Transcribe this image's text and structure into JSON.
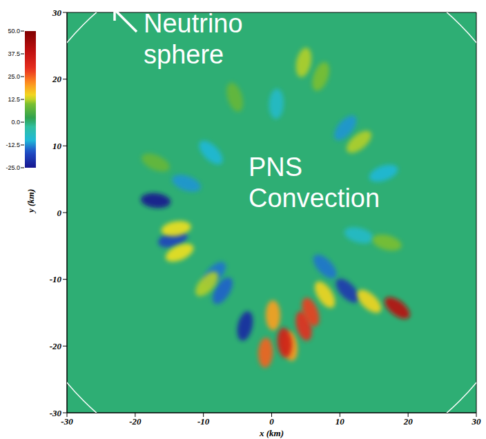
{
  "chart_data": {
    "type": "heatmap",
    "xlabel": "x (km)",
    "ylabel": "y (km)",
    "xlim": [
      -30,
      30
    ],
    "ylim": [
      -30,
      30
    ],
    "xticks": [
      -30,
      -20,
      -10,
      0,
      10,
      20,
      30
    ],
    "yticks": [
      -30,
      -20,
      -10,
      0,
      10,
      20,
      30
    ],
    "background_value": 0,
    "neutrino_sphere_radius": 39,
    "colorbar": {
      "range": [
        -25,
        50
      ],
      "ticks": [
        {
          "value": 50,
          "label": "50.0"
        },
        {
          "value": 37.5,
          "label": "37.5"
        },
        {
          "value": 25,
          "label": "25.0"
        },
        {
          "value": 12.5,
          "label": "12.5"
        },
        {
          "value": 0,
          "label": "0.0"
        },
        {
          "value": -12.5,
          "label": "-12.5"
        },
        {
          "value": -25,
          "label": "-25.0"
        }
      ]
    },
    "cells": [
      {
        "x": 18.4,
        "y": -14.3,
        "value": 40
      },
      {
        "x": 4.7,
        "y": -17,
        "value": 30
      },
      {
        "x": 2.7,
        "y": -20,
        "value": 20
      },
      {
        "x": 0.2,
        "y": -15.4,
        "value": 20
      },
      {
        "x": -3.9,
        "y": -17,
        "value": -22
      },
      {
        "x": 11.1,
        "y": -11.7,
        "value": -20
      },
      {
        "x": -17,
        "y": 1.8,
        "value": -25
      },
      {
        "x": -14.5,
        "y": -4,
        "value": -18
      },
      {
        "x": -7.2,
        "y": -11.7,
        "value": -15
      },
      {
        "x": 7.8,
        "y": -12.3,
        "value": 15
      },
      {
        "x": 14.3,
        "y": -13.3,
        "value": 15
      },
      {
        "x": -0.9,
        "y": -21,
        "value": 25
      },
      {
        "x": 1.9,
        "y": -19.5,
        "value": 35
      },
      {
        "x": 4.7,
        "y": 22.5,
        "value": 12
      },
      {
        "x": 7.2,
        "y": 20.4,
        "value": 10
      },
      {
        "x": 12.8,
        "y": 10.6,
        "value": 12
      },
      {
        "x": 10.8,
        "y": 12.7,
        "value": -12
      },
      {
        "x": -8.9,
        "y": 9,
        "value": -10
      },
      {
        "x": -14,
        "y": -2.4,
        "value": 14
      },
      {
        "x": -12.5,
        "y": 4.4,
        "value": -12
      },
      {
        "x": 7.8,
        "y": -8.1,
        "value": -14
      },
      {
        "x": -13.5,
        "y": -6,
        "value": 14
      },
      {
        "x": -8.4,
        "y": -9.2,
        "value": -14
      },
      {
        "x": -9.5,
        "y": -10.7,
        "value": 12
      },
      {
        "x": 5.7,
        "y": -14.9,
        "value": 28
      },
      {
        "x": 16.4,
        "y": 5.9,
        "value": -10
      },
      {
        "x": -17,
        "y": 7.5,
        "value": 8
      },
      {
        "x": 12.8,
        "y": -3.4,
        "value": -8
      },
      {
        "x": 16.9,
        "y": -4.5,
        "value": 10
      },
      {
        "x": 0.7,
        "y": 16.3,
        "value": -8
      },
      {
        "x": -5.4,
        "y": 17.3,
        "value": 8
      }
    ],
    "annotations": [
      {
        "text": "Neutrino sphere"
      },
      {
        "text": "PNS Convection"
      }
    ]
  }
}
